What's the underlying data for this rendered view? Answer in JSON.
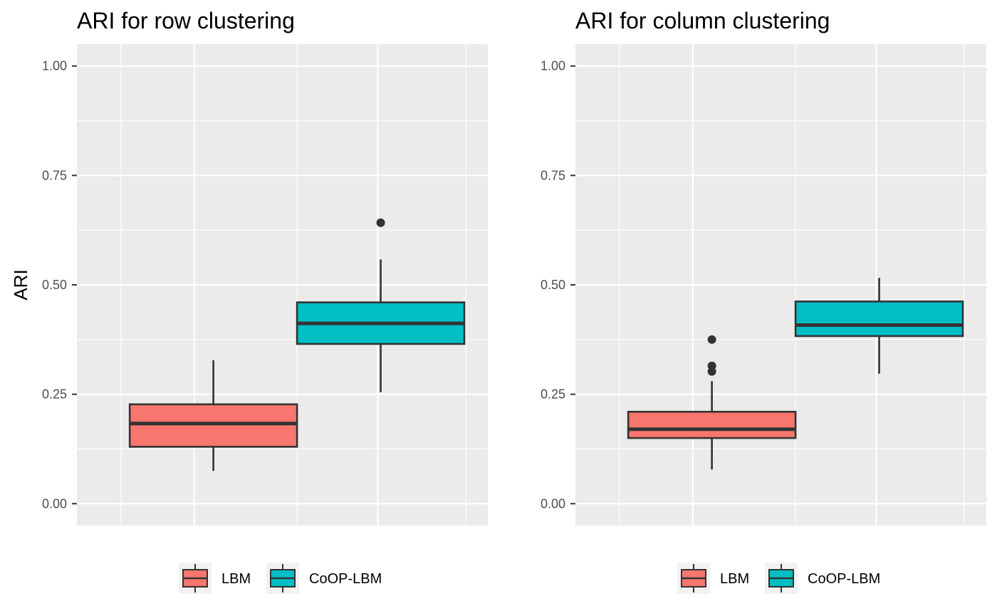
{
  "chart_data": [
    {
      "type": "boxplot",
      "title": "ARI for row clustering",
      "ylabel": "ARI",
      "xlabel": "",
      "ylim": [
        -0.05,
        1.05
      ],
      "yticks": [
        "0.00",
        "0.25",
        "0.50",
        "0.75",
        "1.00"
      ],
      "ytick_values": [
        0,
        0.25,
        0.5,
        0.75,
        1
      ],
      "grid": true,
      "legend_position": "bottom",
      "series": [
        {
          "name": "LBM",
          "color": "#F8766D",
          "x_center": -0.57,
          "half_width": 0.57,
          "whisker_low": 0.075,
          "q1": 0.13,
          "median": 0.183,
          "q3": 0.227,
          "whisker_high": 0.328,
          "outliers": []
        },
        {
          "name": "CoOP-LBM",
          "color": "#00BFC4",
          "x_center": 0.57,
          "half_width": 0.57,
          "whisker_low": 0.255,
          "q1": 0.365,
          "median": 0.412,
          "q3": 0.46,
          "whisker_high": 0.558,
          "outliers": [
            0.642
          ]
        }
      ],
      "outlier_x": [
        0.0
      ],
      "xlim": [
        -1.5,
        1.3
      ]
    },
    {
      "type": "boxplot",
      "title": "ARI for column clustering",
      "ylabel": "",
      "xlabel": "",
      "ylim": [
        -0.05,
        1.05
      ],
      "yticks": [
        "0.00",
        "0.25",
        "0.50",
        "0.75",
        "1.00"
      ],
      "ytick_values": [
        0,
        0.25,
        0.5,
        0.75,
        1
      ],
      "grid": true,
      "legend_position": "bottom",
      "series": [
        {
          "name": "LBM",
          "color": "#F8766D",
          "x_center": -0.57,
          "half_width": 0.57,
          "whisker_low": 0.078,
          "q1": 0.15,
          "median": 0.17,
          "q3": 0.21,
          "whisker_high": 0.28,
          "outliers": [
            0.302,
            0.315,
            0.375
          ]
        },
        {
          "name": "CoOP-LBM",
          "color": "#00BFC4",
          "x_center": 0.57,
          "half_width": 0.57,
          "whisker_low": 0.297,
          "q1": 0.383,
          "median": 0.408,
          "q3": 0.462,
          "whisker_high": 0.516,
          "outliers": []
        }
      ],
      "xlim": [
        -1.5,
        1.3
      ]
    }
  ],
  "legend": {
    "items": [
      {
        "label": "LBM",
        "color": "#F8766D"
      },
      {
        "label": "CoOP-LBM",
        "color": "#00BFC4"
      }
    ]
  }
}
